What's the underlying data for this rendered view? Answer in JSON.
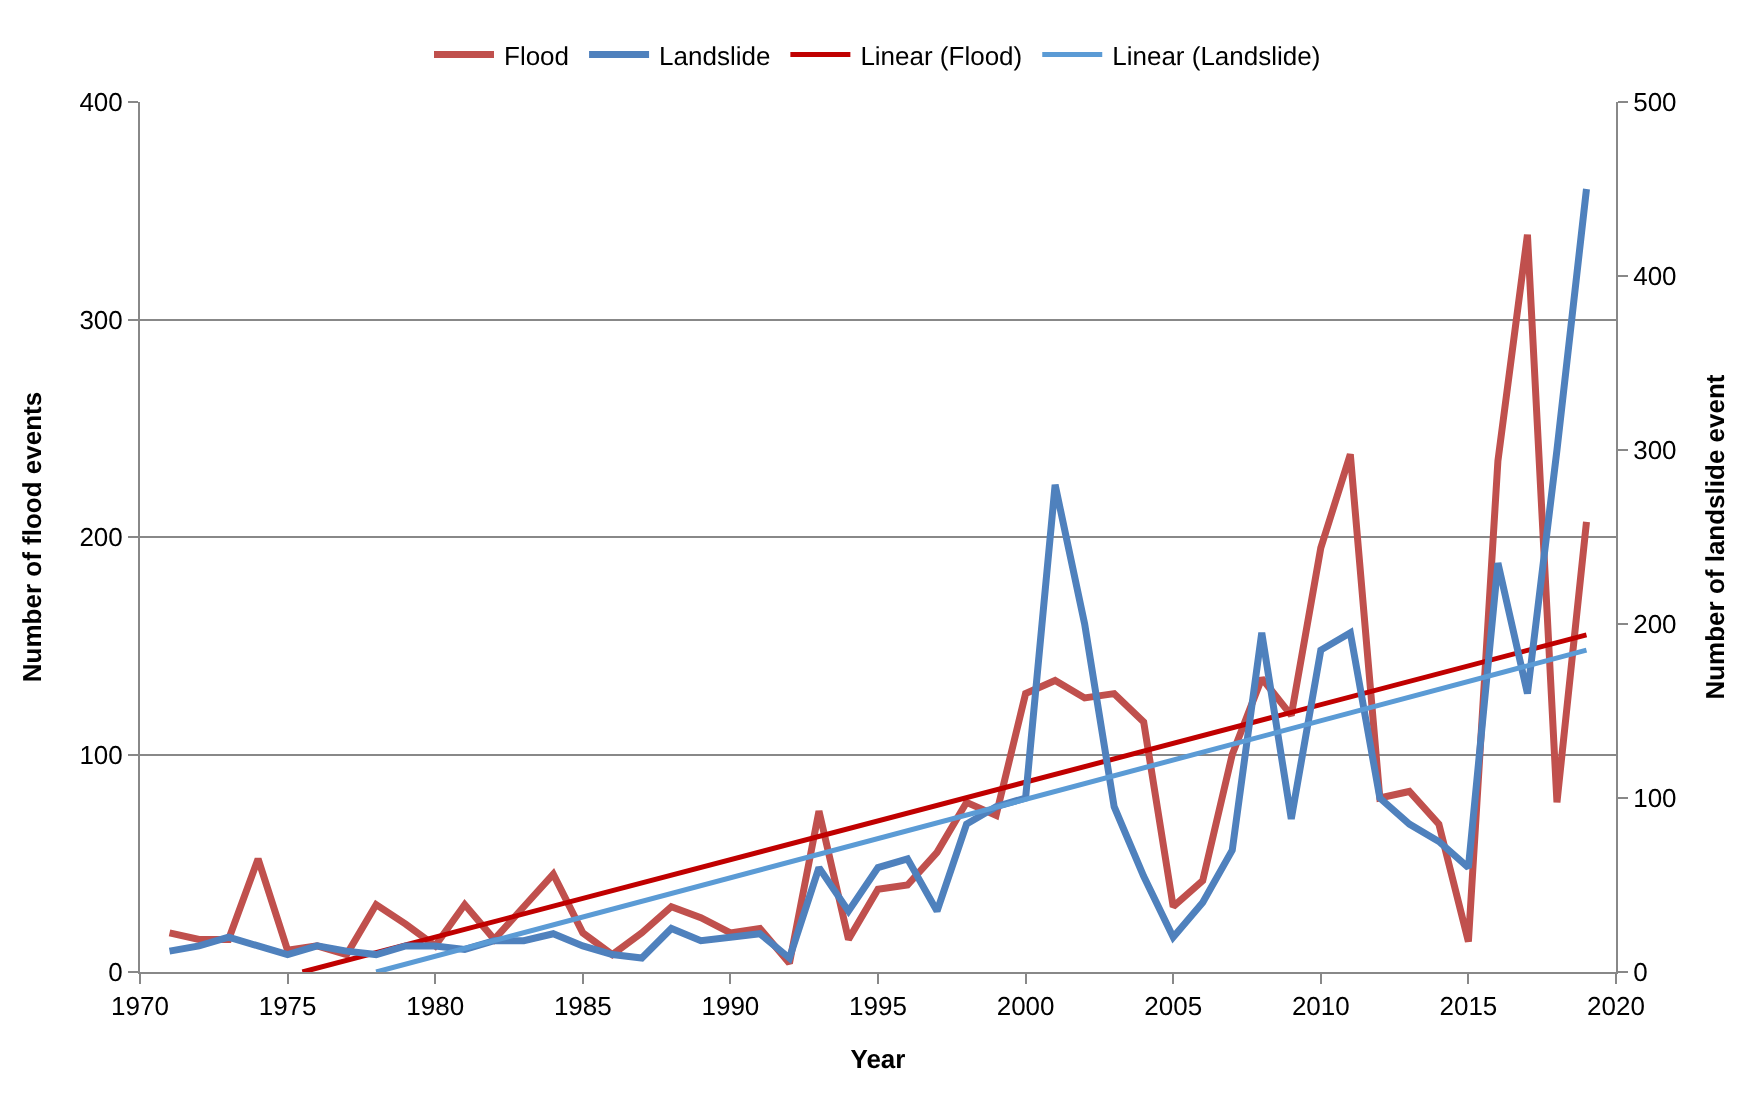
{
  "chart_data": {
    "type": "line",
    "xlabel": "Year",
    "ylabel": "Number of flood events",
    "y2label": "Number of landslide event",
    "x": [
      1971,
      1972,
      1973,
      1974,
      1975,
      1976,
      1977,
      1978,
      1979,
      1980,
      1981,
      1982,
      1983,
      1984,
      1985,
      1986,
      1987,
      1988,
      1989,
      1990,
      1991,
      1992,
      1993,
      1994,
      1995,
      1996,
      1997,
      1998,
      1999,
      2000,
      2001,
      2002,
      2003,
      2004,
      2005,
      2006,
      2007,
      2008,
      2009,
      2010,
      2011,
      2012,
      2013,
      2014,
      2015,
      2016,
      2017,
      2018,
      2019
    ],
    "series": [
      {
        "name": "Flood",
        "color": "#c0504d",
        "values": [
          18,
          15,
          15,
          52,
          10,
          12,
          8,
          31,
          22,
          12,
          31,
          15,
          30,
          45,
          18,
          8,
          18,
          30,
          25,
          18,
          20,
          4,
          74,
          15,
          38,
          40,
          55,
          78,
          72,
          128,
          134,
          126,
          128,
          115,
          30,
          42,
          100,
          135,
          118,
          195,
          238,
          80,
          83,
          68,
          14,
          235,
          339,
          78,
          207
        ]
      },
      {
        "name": "Landslide",
        "color": "#4f81bd",
        "axis": "y2",
        "values": [
          12,
          15,
          20,
          15,
          10,
          15,
          12,
          10,
          15,
          15,
          13,
          18,
          18,
          22,
          15,
          10,
          8,
          25,
          18,
          20,
          22,
          8,
          60,
          35,
          60,
          65,
          35,
          85,
          95,
          100,
          280,
          200,
          95,
          55,
          20,
          40,
          70,
          195,
          88,
          185,
          195,
          100,
          85,
          75,
          60,
          235,
          160,
          300,
          450
        ]
      },
      {
        "name": "Linear (Flood)",
        "color": "#c00000",
        "x": [
          1975.5,
          2019
        ],
        "values": [
          0,
          155
        ]
      },
      {
        "name": "Linear (Landslide)",
        "color": "#5b9bd5",
        "axis": "y2",
        "x": [
          1978,
          2019
        ],
        "values": [
          0,
          185
        ]
      }
    ],
    "xlim": [
      1970,
      2020
    ],
    "xticks": [
      1970,
      1975,
      1980,
      1985,
      1990,
      1995,
      2000,
      2005,
      2010,
      2015,
      2020
    ],
    "ylim": [
      0,
      400
    ],
    "yticks": [
      0,
      100,
      200,
      300,
      400
    ],
    "y2lim": [
      0,
      500
    ],
    "y2ticks": [
      0,
      100,
      200,
      300,
      400,
      500
    ],
    "grid": "y",
    "legend": "top",
    "marker": "none",
    "line_style": "solid"
  }
}
